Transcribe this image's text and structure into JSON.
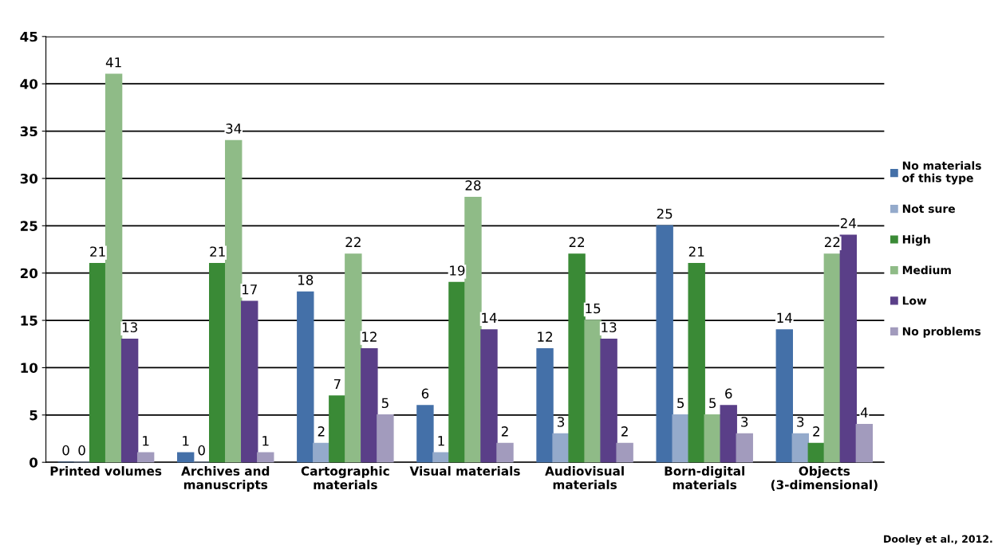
{
  "chart_data": {
    "type": "bar",
    "categories": [
      "Printed volumes",
      "Archives and\nmanuscripts",
      "Cartographic\nmaterials",
      "Visual materials",
      "Audiovisual\nmaterials",
      "Born-digital\nmaterials",
      "Objects\n(3-dimensional)"
    ],
    "series": [
      {
        "name": "No materials\nof this type",
        "color": "#4470a8",
        "values": [
          0,
          1,
          18,
          6,
          12,
          25,
          14
        ]
      },
      {
        "name": "Not sure",
        "color": "#94aacb",
        "values": [
          0,
          0,
          2,
          1,
          3,
          5,
          3
        ]
      },
      {
        "name": "High",
        "color": "#3a8a36",
        "values": [
          21,
          21,
          7,
          19,
          22,
          21,
          2
        ]
      },
      {
        "name": "Medium",
        "color": "#8fbb87",
        "values": [
          41,
          34,
          22,
          28,
          15,
          5,
          22
        ]
      },
      {
        "name": "Low",
        "color": "#5a3f88",
        "values": [
          13,
          17,
          12,
          14,
          13,
          6,
          24
        ]
      },
      {
        "name": "No problems",
        "color": "#a29bbd",
        "values": [
          1,
          1,
          5,
          2,
          2,
          3,
          4
        ]
      }
    ],
    "ylim": [
      0,
      45
    ],
    "yticks": [
      0,
      5,
      10,
      15,
      20,
      25,
      30,
      35,
      40,
      45
    ],
    "grid": "y",
    "legend": "right",
    "data_labels": true,
    "annotations": [
      "Dooley et al., 2012."
    ]
  }
}
